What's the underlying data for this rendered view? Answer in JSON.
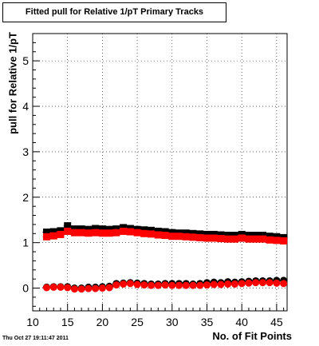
{
  "chart_data": {
    "type": "scatter",
    "title": "Fitted pull for Relative 1/pT Primary Tracks",
    "xlabel": "No. of Fit Points",
    "ylabel": "pull for Relative 1/pT",
    "xlim": [
      10,
      46.5
    ],
    "ylim": [
      -0.5,
      5.6
    ],
    "x_ticks": [
      "10",
      "15",
      "20",
      "25",
      "30",
      "35",
      "40",
      "45"
    ],
    "y_ticks": [
      "0",
      "1",
      "2",
      "3",
      "4",
      "5"
    ],
    "x": [
      12,
      13,
      14,
      15,
      16,
      17,
      18,
      19,
      20,
      21,
      22,
      23,
      24,
      25,
      26,
      27,
      28,
      29,
      30,
      31,
      32,
      33,
      34,
      35,
      36,
      37,
      38,
      39,
      40,
      41,
      42,
      43,
      44,
      45,
      46
    ],
    "series": [
      {
        "color": "#000000",
        "marker": "square",
        "values": [
          1.23,
          1.24,
          1.26,
          1.37,
          1.3,
          1.3,
          1.29,
          1.31,
          1.3,
          1.29,
          1.3,
          1.33,
          1.31,
          1.29,
          1.28,
          1.27,
          1.25,
          1.24,
          1.22,
          1.21,
          1.21,
          1.2,
          1.19,
          1.18,
          1.18,
          1.17,
          1.16,
          1.16,
          1.18,
          1.16,
          1.16,
          1.16,
          1.14,
          1.13,
          1.11
        ]
      },
      {
        "color": "#ff0000",
        "marker": "square",
        "values": [
          1.13,
          1.15,
          1.18,
          1.25,
          1.22,
          1.22,
          1.21,
          1.22,
          1.21,
          1.21,
          1.22,
          1.25,
          1.24,
          1.22,
          1.2,
          1.19,
          1.17,
          1.16,
          1.14,
          1.14,
          1.13,
          1.12,
          1.11,
          1.1,
          1.1,
          1.09,
          1.08,
          1.08,
          1.1,
          1.08,
          1.08,
          1.08,
          1.06,
          1.05,
          1.04
        ]
      },
      {
        "color": "#000000",
        "marker": "circle",
        "values": [
          0.02,
          0.03,
          0.03,
          0.03,
          0.0,
          0.0,
          0.02,
          0.02,
          0.03,
          0.04,
          0.1,
          0.11,
          0.12,
          0.11,
          0.1,
          0.09,
          0.09,
          0.1,
          0.1,
          0.1,
          0.1,
          0.09,
          0.1,
          0.12,
          0.13,
          0.12,
          0.14,
          0.13,
          0.14,
          0.15,
          0.16,
          0.16,
          0.16,
          0.17,
          0.17
        ]
      },
      {
        "color": "#ff0000",
        "marker": "circle",
        "values": [
          0.01,
          0.02,
          0.02,
          0.01,
          -0.02,
          -0.02,
          -0.01,
          -0.01,
          0.0,
          0.01,
          0.07,
          0.09,
          0.1,
          0.08,
          0.07,
          0.06,
          0.06,
          0.07,
          0.06,
          0.06,
          0.06,
          0.06,
          0.06,
          0.07,
          0.08,
          0.08,
          0.09,
          0.09,
          0.1,
          0.11,
          0.12,
          0.12,
          0.12,
          0.11,
          0.1
        ]
      }
    ]
  },
  "datestamp": "Thu Oct 27 19:11:47 2011"
}
